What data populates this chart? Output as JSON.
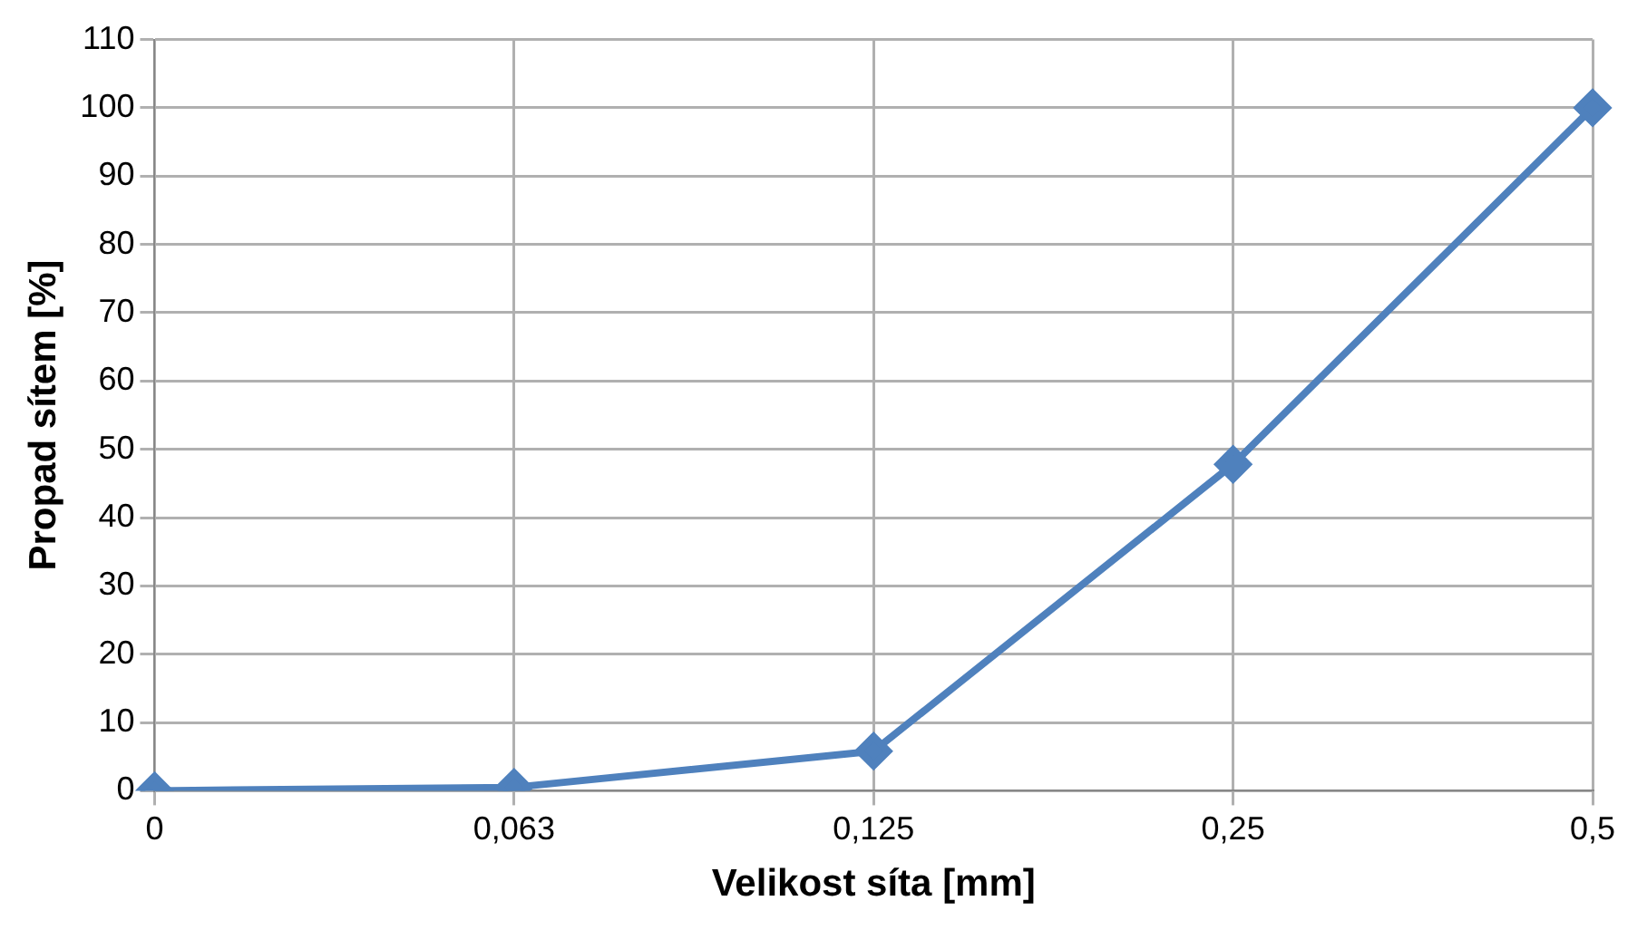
{
  "chart_data": {
    "type": "line",
    "xlabel": "Velikost síta [mm]",
    "ylabel": "Propad sítem [%]",
    "categories": [
      "0",
      "0,063",
      "0,125",
      "0,25",
      "0,5"
    ],
    "series": [
      {
        "color": "#4f81bd",
        "values": [
          0,
          0.5,
          5.8,
          47.8,
          100
        ]
      }
    ],
    "ylim": [
      0,
      110
    ],
    "yticks": [
      0,
      10,
      20,
      30,
      40,
      50,
      60,
      70,
      80,
      90,
      100,
      110
    ],
    "grid": true,
    "legend": false,
    "marker": "diamond",
    "line_style": "solid"
  }
}
